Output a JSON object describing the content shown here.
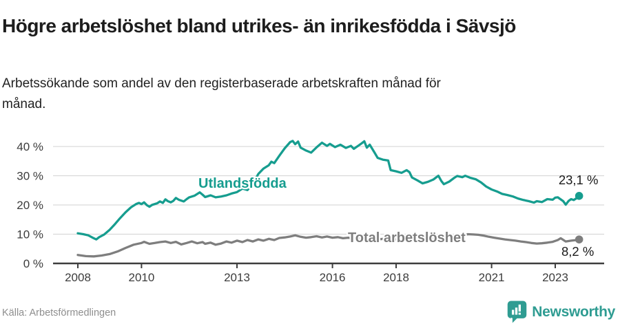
{
  "header": {
    "title": "Högre arbetslöshet bland utrikes- än inrikesfödda i Sävsjö",
    "subtitle": "Arbetssökande som andel av den registerbaserade arbetskraften månad för månad."
  },
  "footer": {
    "source": "Källa: Arbetsförmedlingen",
    "brand": "Newsworthy"
  },
  "colors": {
    "accent_teal": "#169d8f",
    "series_gray": "#7e7e7e",
    "gridline": "#d9d9d9",
    "axis": "#3d3d3d",
    "axis_text": "#3c3c3c",
    "end_label_text": "#1a1a1a",
    "logo_teal": "#2f9c92"
  },
  "chart_data": {
    "type": "line",
    "title": "Högre arbetslöshet bland utrikes- än inrikesfödda i Sävsjö",
    "subtitle": "Arbetssökande som andel av den registerbaserade arbetskraften månad för månad.",
    "source": "Källa: Arbetsförmedlingen",
    "unit": "%",
    "grid": "horizontal",
    "legend_position": "inline-labels",
    "x_axis": {
      "range": [
        2007.55,
        2024.3
      ],
      "ticks": [
        {
          "value": 2008,
          "label": "2008"
        },
        {
          "value": 2010,
          "label": "2010"
        },
        {
          "value": 2013,
          "label": "2013"
        },
        {
          "value": 2016,
          "label": "2016"
        },
        {
          "value": 2018,
          "label": "2018"
        },
        {
          "value": 2021,
          "label": "2021"
        },
        {
          "value": 2023,
          "label": "2023"
        }
      ]
    },
    "y_axis": {
      "range": [
        0,
        44
      ],
      "ticks": [
        {
          "value": 0,
          "label": "0 %"
        },
        {
          "value": 10,
          "label": "10 %"
        },
        {
          "value": 20,
          "label": "20 %"
        },
        {
          "value": 30,
          "label": "30 %"
        },
        {
          "value": 40,
          "label": "40 %"
        }
      ]
    },
    "series": [
      {
        "name": "Utlandsfödda",
        "color": "#169d8f",
        "end_label": "23,1 %",
        "end_value": 23.1,
        "points": [
          [
            2008.0,
            10.3
          ],
          [
            2008.17,
            10.0
          ],
          [
            2008.33,
            9.6
          ],
          [
            2008.5,
            8.6
          ],
          [
            2008.58,
            8.2
          ],
          [
            2008.67,
            9.0
          ],
          [
            2008.83,
            9.9
          ],
          [
            2009.0,
            11.5
          ],
          [
            2009.17,
            13.5
          ],
          [
            2009.33,
            15.5
          ],
          [
            2009.5,
            17.5
          ],
          [
            2009.67,
            19.2
          ],
          [
            2009.83,
            20.3
          ],
          [
            2009.92,
            20.7
          ],
          [
            2010.0,
            20.3
          ],
          [
            2010.08,
            20.9
          ],
          [
            2010.17,
            19.9
          ],
          [
            2010.25,
            19.4
          ],
          [
            2010.33,
            20.0
          ],
          [
            2010.5,
            20.6
          ],
          [
            2010.58,
            21.2
          ],
          [
            2010.67,
            20.7
          ],
          [
            2010.75,
            21.9
          ],
          [
            2010.83,
            21.3
          ],
          [
            2010.92,
            20.9
          ],
          [
            2011.0,
            21.4
          ],
          [
            2011.08,
            22.4
          ],
          [
            2011.17,
            21.8
          ],
          [
            2011.33,
            21.2
          ],
          [
            2011.42,
            22.0
          ],
          [
            2011.5,
            22.6
          ],
          [
            2011.67,
            23.2
          ],
          [
            2011.83,
            24.3
          ],
          [
            2011.92,
            23.5
          ],
          [
            2012.0,
            22.7
          ],
          [
            2012.17,
            23.3
          ],
          [
            2012.33,
            22.6
          ],
          [
            2012.5,
            22.9
          ],
          [
            2012.67,
            23.3
          ],
          [
            2012.83,
            23.9
          ],
          [
            2013.0,
            24.4
          ],
          [
            2013.17,
            25.6
          ],
          [
            2013.33,
            25.1
          ],
          [
            2013.5,
            27.3
          ],
          [
            2013.67,
            30.6
          ],
          [
            2013.83,
            32.4
          ],
          [
            2014.0,
            33.6
          ],
          [
            2014.08,
            34.8
          ],
          [
            2014.17,
            34.3
          ],
          [
            2014.33,
            36.8
          ],
          [
            2014.5,
            39.4
          ],
          [
            2014.67,
            41.5
          ],
          [
            2014.75,
            41.9
          ],
          [
            2014.83,
            40.8
          ],
          [
            2014.92,
            41.7
          ],
          [
            2015.0,
            39.6
          ],
          [
            2015.17,
            38.6
          ],
          [
            2015.33,
            37.9
          ],
          [
            2015.5,
            39.7
          ],
          [
            2015.67,
            41.3
          ],
          [
            2015.83,
            40.2
          ],
          [
            2015.92,
            40.9
          ],
          [
            2016.08,
            39.8
          ],
          [
            2016.25,
            40.6
          ],
          [
            2016.42,
            39.5
          ],
          [
            2016.58,
            40.2
          ],
          [
            2016.67,
            39.2
          ],
          [
            2016.83,
            40.4
          ],
          [
            2016.92,
            41.1
          ],
          [
            2017.0,
            41.8
          ],
          [
            2017.08,
            39.6
          ],
          [
            2017.17,
            40.6
          ],
          [
            2017.33,
            37.8
          ],
          [
            2017.42,
            36.1
          ],
          [
            2017.58,
            35.5
          ],
          [
            2017.75,
            35.2
          ],
          [
            2017.83,
            31.9
          ],
          [
            2018.0,
            31.5
          ],
          [
            2018.17,
            31.0
          ],
          [
            2018.33,
            31.9
          ],
          [
            2018.42,
            31.2
          ],
          [
            2018.5,
            29.4
          ],
          [
            2018.67,
            28.4
          ],
          [
            2018.83,
            27.4
          ],
          [
            2019.0,
            27.9
          ],
          [
            2019.17,
            28.7
          ],
          [
            2019.33,
            30.0
          ],
          [
            2019.42,
            28.2
          ],
          [
            2019.5,
            27.1
          ],
          [
            2019.67,
            28.0
          ],
          [
            2019.83,
            29.3
          ],
          [
            2019.92,
            29.9
          ],
          [
            2020.08,
            29.5
          ],
          [
            2020.17,
            30.0
          ],
          [
            2020.33,
            29.3
          ],
          [
            2020.5,
            28.8
          ],
          [
            2020.67,
            27.7
          ],
          [
            2020.83,
            26.3
          ],
          [
            2021.0,
            25.3
          ],
          [
            2021.17,
            24.6
          ],
          [
            2021.33,
            23.8
          ],
          [
            2021.5,
            23.4
          ],
          [
            2021.67,
            22.9
          ],
          [
            2021.83,
            22.2
          ],
          [
            2022.0,
            21.7
          ],
          [
            2022.17,
            21.3
          ],
          [
            2022.33,
            20.8
          ],
          [
            2022.42,
            21.3
          ],
          [
            2022.58,
            21.0
          ],
          [
            2022.75,
            22.0
          ],
          [
            2022.92,
            21.8
          ],
          [
            2023.0,
            22.5
          ],
          [
            2023.08,
            22.6
          ],
          [
            2023.17,
            21.9
          ],
          [
            2023.25,
            21.3
          ],
          [
            2023.33,
            20.1
          ],
          [
            2023.42,
            21.4
          ],
          [
            2023.5,
            22.0
          ],
          [
            2023.58,
            21.7
          ],
          [
            2023.67,
            22.3
          ],
          [
            2023.75,
            23.1
          ]
        ]
      },
      {
        "name": "Total arbetslöshet",
        "color": "#7e7e7e",
        "end_label": "8,2 %",
        "end_value": 8.2,
        "points": [
          [
            2008.0,
            2.9
          ],
          [
            2008.25,
            2.5
          ],
          [
            2008.5,
            2.4
          ],
          [
            2008.75,
            2.7
          ],
          [
            2009.0,
            3.2
          ],
          [
            2009.25,
            4.1
          ],
          [
            2009.5,
            5.3
          ],
          [
            2009.75,
            6.4
          ],
          [
            2010.0,
            7.0
          ],
          [
            2010.08,
            7.4
          ],
          [
            2010.25,
            6.7
          ],
          [
            2010.42,
            7.0
          ],
          [
            2010.58,
            7.3
          ],
          [
            2010.75,
            7.5
          ],
          [
            2010.92,
            7.0
          ],
          [
            2011.08,
            7.4
          ],
          [
            2011.25,
            6.5
          ],
          [
            2011.42,
            7.0
          ],
          [
            2011.58,
            7.5
          ],
          [
            2011.75,
            6.9
          ],
          [
            2011.92,
            7.3
          ],
          [
            2012.0,
            6.7
          ],
          [
            2012.17,
            7.1
          ],
          [
            2012.33,
            6.4
          ],
          [
            2012.5,
            6.8
          ],
          [
            2012.67,
            7.5
          ],
          [
            2012.83,
            7.1
          ],
          [
            2013.0,
            7.8
          ],
          [
            2013.17,
            7.3
          ],
          [
            2013.33,
            8.0
          ],
          [
            2013.5,
            7.5
          ],
          [
            2013.67,
            8.2
          ],
          [
            2013.83,
            7.8
          ],
          [
            2014.0,
            8.4
          ],
          [
            2014.17,
            8.0
          ],
          [
            2014.33,
            8.7
          ],
          [
            2014.5,
            8.9
          ],
          [
            2014.67,
            9.2
          ],
          [
            2014.83,
            9.6
          ],
          [
            2015.0,
            9.1
          ],
          [
            2015.17,
            8.8
          ],
          [
            2015.33,
            9.0
          ],
          [
            2015.5,
            9.3
          ],
          [
            2015.67,
            8.9
          ],
          [
            2015.83,
            9.2
          ],
          [
            2016.0,
            8.8
          ],
          [
            2016.17,
            9.0
          ],
          [
            2016.33,
            8.6
          ],
          [
            2016.5,
            8.8
          ],
          [
            2016.67,
            8.4
          ],
          [
            2016.83,
            8.6
          ],
          [
            2017.0,
            8.8
          ],
          [
            2017.25,
            8.5
          ],
          [
            2017.5,
            8.3
          ],
          [
            2017.75,
            8.5
          ],
          [
            2018.0,
            8.2
          ],
          [
            2018.25,
            8.0
          ],
          [
            2018.5,
            8.3
          ],
          [
            2018.75,
            8.1
          ],
          [
            2019.0,
            8.4
          ],
          [
            2019.25,
            8.6
          ],
          [
            2019.5,
            8.9
          ],
          [
            2019.75,
            9.1
          ],
          [
            2020.0,
            9.3
          ],
          [
            2020.25,
            10.0
          ],
          [
            2020.42,
            9.9
          ],
          [
            2020.58,
            9.8
          ],
          [
            2020.75,
            9.5
          ],
          [
            2020.92,
            9.1
          ],
          [
            2021.08,
            8.8
          ],
          [
            2021.25,
            8.5
          ],
          [
            2021.42,
            8.2
          ],
          [
            2021.58,
            8.0
          ],
          [
            2021.75,
            7.8
          ],
          [
            2021.92,
            7.5
          ],
          [
            2022.08,
            7.3
          ],
          [
            2022.25,
            7.0
          ],
          [
            2022.42,
            6.8
          ],
          [
            2022.58,
            6.9
          ],
          [
            2022.75,
            7.1
          ],
          [
            2022.92,
            7.4
          ],
          [
            2023.08,
            8.0
          ],
          [
            2023.17,
            8.6
          ],
          [
            2023.33,
            7.5
          ],
          [
            2023.5,
            7.8
          ],
          [
            2023.67,
            8.0
          ],
          [
            2023.75,
            8.2
          ]
        ]
      }
    ]
  }
}
